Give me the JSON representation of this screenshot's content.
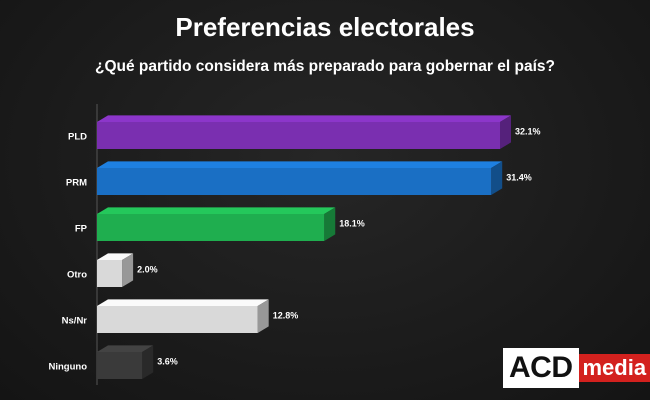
{
  "chart_data": {
    "type": "bar",
    "orientation": "horizontal",
    "title": "Preferencias electorales",
    "subtitle": "¿Qué partido considera más preparado para gobernar el país?",
    "categories": [
      "PLD",
      "PRM",
      "FP",
      "Otro",
      "Ns/Nr",
      "Ninguno"
    ],
    "values": [
      32.1,
      31.4,
      18.1,
      2.0,
      12.8,
      3.6
    ],
    "value_labels": [
      "32.1%",
      "31.4%",
      "18.1%",
      "2.0%",
      "12.8%",
      "3.6%"
    ],
    "colors": [
      "#7a2fb0",
      "#1a6fc4",
      "#1fae4f",
      "#d9d9d9",
      "#d9d9d9",
      "#3a3a3a"
    ],
    "xlim": [
      0,
      32.1
    ],
    "grid": false,
    "legend": "none"
  },
  "logo": {
    "left": "ACD",
    "right": "media"
  }
}
